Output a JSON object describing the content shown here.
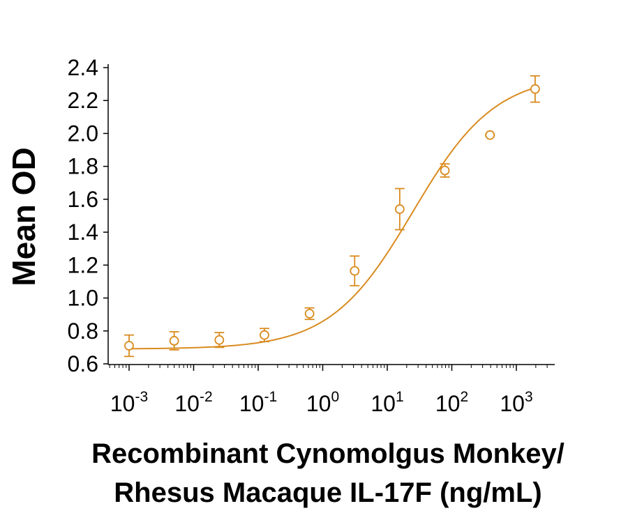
{
  "chart_data": {
    "type": "scatter",
    "title": "",
    "xlabel_lines": [
      "Recombinant Cynomolgus Monkey/",
      "Rhesus Macaque IL-17F (ng/mL)"
    ],
    "ylabel": "Mean OD",
    "xscale": "log",
    "xlim": [
      0.0005,
      4000
    ],
    "ylim": [
      0.6,
      2.4
    ],
    "x_ticks": [
      {
        "value": 0.001,
        "base": "10",
        "exp": "-3"
      },
      {
        "value": 0.01,
        "base": "10",
        "exp": "-2"
      },
      {
        "value": 0.1,
        "base": "10",
        "exp": "-1"
      },
      {
        "value": 1,
        "base": "10",
        "exp": "0"
      },
      {
        "value": 10,
        "base": "10",
        "exp": "1"
      },
      {
        "value": 100,
        "base": "10",
        "exp": "2"
      },
      {
        "value": 1000,
        "base": "10",
        "exp": "3"
      }
    ],
    "y_ticks": [
      "0.6",
      "0.8",
      "1.0",
      "1.2",
      "1.4",
      "1.6",
      "1.8",
      "2.0",
      "2.2",
      "2.4"
    ],
    "grid": false,
    "color": "#D98B1F",
    "series": [
      {
        "marker": "open-circle",
        "x": [
          0.001,
          0.005,
          0.025,
          0.125,
          0.625,
          3.125,
          15.6,
          78.1,
          390.6,
          1953
        ],
        "y": [
          0.71,
          0.74,
          0.745,
          0.775,
          0.905,
          1.165,
          1.54,
          1.775,
          1.99,
          2.27
        ],
        "error": [
          0.065,
          0.055,
          0.045,
          0.04,
          0.035,
          0.09,
          0.125,
          0.04,
          0.005,
          0.08
        ]
      }
    ],
    "fit": {
      "type": "4PL",
      "bottom": 0.69,
      "top": 2.36,
      "ec50": 25,
      "hill": 0.68
    }
  }
}
